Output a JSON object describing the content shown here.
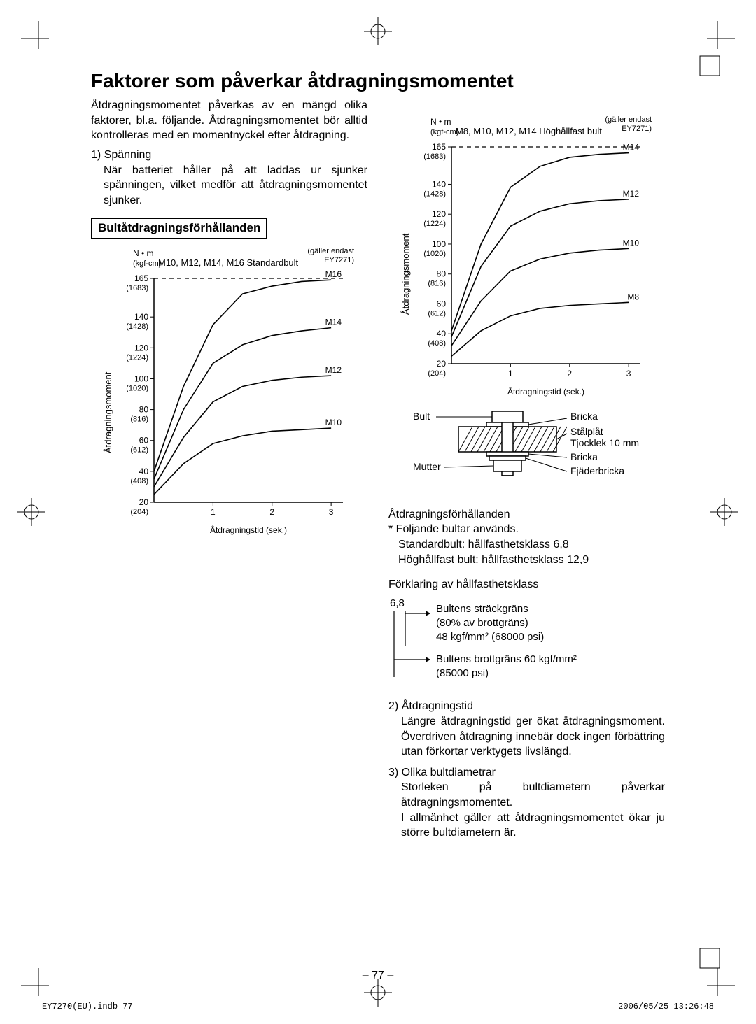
{
  "title": "Faktorer som påverkar åt­dragningsmomentet",
  "intro": "Åtdragningsmomentet påverkas av en mängd olika faktorer, bl.a. följande. Åtdrag­ningsmomentet bör alltid kontrolleras med en momentnyckel efter åtdragning.",
  "item1_label": "1) Spänning",
  "item1_body": "När batteriet håller på att laddas ur sjunker spänningen, vilket medför att åtdragningsmomentet sjunker.",
  "box_title": "Bultåtdragningsförhållanden",
  "note_only": "(gäller endast EY7271)",
  "unit_top": "N • m",
  "unit_sub": "(kgf-cm)",
  "chart1": {
    "type": "line",
    "title": "M10, M12, M14, M16 Standardbult",
    "ylabel": "Åtdragningsmoment",
    "xlabel": "Åtdragningstid (sek.)",
    "ylim": [
      20,
      165
    ],
    "xlim": [
      0,
      3.2
    ],
    "xticks": [
      1,
      2,
      3
    ],
    "xticklabels": [
      "1",
      "2",
      "3"
    ],
    "yticks": [
      20,
      40,
      60,
      80,
      100,
      120,
      140,
      165
    ],
    "ytick_sub": [
      "(204)",
      "(408)",
      "(612)",
      "(816)",
      "(1020)",
      "(1224)",
      "(1428)",
      "(1683)"
    ],
    "series": [
      {
        "label": "M16",
        "color": "#000000",
        "yvals": [
          40,
          95,
          135,
          155,
          160,
          163,
          164
        ]
      },
      {
        "label": "M14",
        "color": "#000000",
        "yvals": [
          35,
          80,
          110,
          122,
          128,
          131,
          133
        ]
      },
      {
        "label": "M12",
        "color": "#000000",
        "yvals": [
          30,
          62,
          85,
          95,
          99,
          101,
          102
        ]
      },
      {
        "label": "M10",
        "color": "#000000",
        "yvals": [
          25,
          45,
          58,
          63,
          66,
          67,
          68
        ]
      }
    ],
    "xvals": [
      0,
      0.5,
      1.0,
      1.5,
      2.0,
      2.5,
      3.0
    ],
    "grid_color": "#000000",
    "background_color": "#ffffff",
    "line_width": 1.6,
    "font_size": 12
  },
  "chart2": {
    "type": "line",
    "title": "M8, M10, M12, M14 Höghållfast bult",
    "ylabel": "Åtdragningsmoment",
    "xlabel": "Åtdragningstid (sek.)",
    "ylim": [
      20,
      165
    ],
    "xlim": [
      0,
      3.2
    ],
    "xticks": [
      1,
      2,
      3
    ],
    "xticklabels": [
      "1",
      "2",
      "3"
    ],
    "yticks": [
      20,
      40,
      60,
      80,
      100,
      120,
      140,
      165
    ],
    "ytick_sub": [
      "(204)",
      "(408)",
      "(612)",
      "(816)",
      "(1020)",
      "(1224)",
      "(1428)",
      "(1683)"
    ],
    "series": [
      {
        "label": "M14",
        "color": "#000000",
        "yvals": [
          42,
          100,
          138,
          152,
          158,
          160,
          161
        ]
      },
      {
        "label": "M12",
        "color": "#000000",
        "yvals": [
          38,
          85,
          112,
          122,
          127,
          129,
          130
        ]
      },
      {
        "label": "M10",
        "color": "#000000",
        "yvals": [
          32,
          62,
          82,
          90,
          94,
          96,
          97
        ]
      },
      {
        "label": "M8",
        "color": "#000000",
        "yvals": [
          25,
          42,
          52,
          57,
          59,
          60,
          61
        ]
      }
    ],
    "xvals": [
      0,
      0.5,
      1.0,
      1.5,
      2.0,
      2.5,
      3.0
    ],
    "grid_color": "#000000",
    "background_color": "#ffffff",
    "line_width": 1.6,
    "font_size": 12
  },
  "boltdiag": {
    "labels": {
      "bult": "Bult",
      "mutter": "Mutter",
      "bricka1": "Bricka",
      "stalplat": "Stålplåt",
      "tjocklek": "Tjocklek 10 mm",
      "bricka2": "Bricka",
      "fjader": "Fjäderbricka"
    },
    "stroke": "#000000"
  },
  "conditions_title": "Åtdragningsförhållanden",
  "conditions_note": "* Följande bultar används.",
  "cond_line1": "Standardbult: hållfasthetsklass 6,8",
  "cond_line2": "Höghållfast bult: hållfasthetsklass 12,9",
  "strength_title": "Förklaring av hållfasthetsklass",
  "strength_68": "6,8",
  "strength_a1": "Bultens sträckgräns",
  "strength_a2": "(80% av brottgräns)",
  "strength_a3": "48 kgf/mm² (68000 psi)",
  "strength_b1": "Bultens brottgräns 60 kgf/mm²",
  "strength_b2": "(85000 psi)",
  "item2_label": "2) Åtdragningstid",
  "item2_body": "Längre åtdragningstid ger ökat åtdrag­ningsmoment. Överdriven åtdragning innebär dock ingen förbättring utan förkortar verktygets livslängd.",
  "item3_label": "3) Olika bultdiametrar",
  "item3_body1": "Storleken på bultdiametern påverkar åtdragningsmomentet.",
  "item3_body2": "I allmänhet gäller att åtdragningsmo­mentet ökar ju större bultdiametern är.",
  "page_number": "– 77 –",
  "footer_left": "EY7270(EU).indb   77",
  "footer_right": "2006/05/25   13:26:48"
}
